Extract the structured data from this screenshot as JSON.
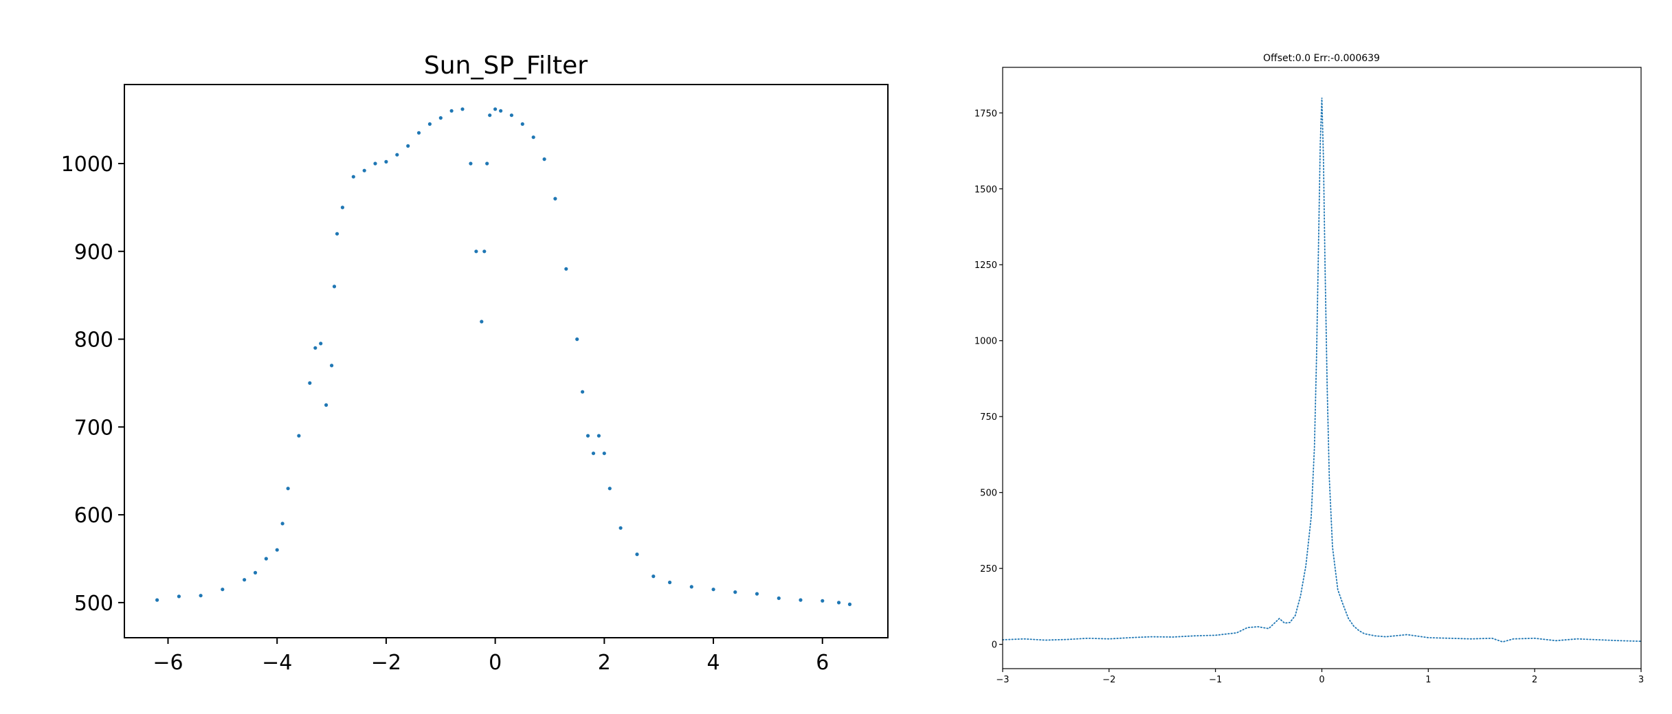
{
  "figure": {
    "background": "#ffffff",
    "series_color": "#1f77b4",
    "axis_color": "#000000"
  },
  "chart_data": [
    {
      "type": "scatter",
      "title": "Sun_SP_Filter",
      "xlabel": "",
      "ylabel": "",
      "xlim": [
        -6.8,
        7.2
      ],
      "ylim": [
        460,
        1090
      ],
      "xticks": [
        -6,
        -4,
        -2,
        0,
        2,
        4,
        6
      ],
      "yticks": [
        500,
        600,
        700,
        800,
        900,
        1000
      ],
      "xtick_labels": [
        "−6",
        "−4",
        "−2",
        "0",
        "2",
        "4",
        "6"
      ],
      "ytick_labels": [
        "500",
        "600",
        "700",
        "800",
        "900",
        "1000"
      ],
      "grid": false,
      "marker": "dot",
      "x": [
        -6.2,
        -5.8,
        -5.4,
        -5.0,
        -4.6,
        -4.4,
        -4.2,
        -4.0,
        -3.9,
        -3.8,
        -3.6,
        -3.4,
        -3.3,
        -3.2,
        -3.1,
        -3.0,
        -2.95,
        -2.9,
        -2.8,
        -2.6,
        -2.4,
        -2.2,
        -2.0,
        -1.8,
        -1.6,
        -1.4,
        -1.2,
        -1.0,
        -0.8,
        -0.6,
        -0.45,
        -0.35,
        -0.25,
        -0.2,
        -0.15,
        -0.1,
        0.0,
        0.1,
        0.3,
        0.5,
        0.7,
        0.9,
        1.1,
        1.3,
        1.5,
        1.6,
        1.7,
        1.8,
        1.9,
        2.0,
        2.1,
        2.3,
        2.6,
        2.9,
        3.2,
        3.6,
        4.0,
        4.4,
        4.8,
        5.2,
        5.6,
        6.0,
        6.3,
        6.5
      ],
      "y": [
        503,
        507,
        508,
        515,
        526,
        534,
        550,
        560,
        590,
        630,
        690,
        750,
        790,
        795,
        725,
        770,
        860,
        920,
        950,
        985,
        992,
        1000,
        1002,
        1010,
        1020,
        1035,
        1045,
        1052,
        1060,
        1062,
        1000,
        900,
        820,
        900,
        1000,
        1055,
        1062,
        1060,
        1055,
        1045,
        1030,
        1005,
        960,
        880,
        800,
        740,
        690,
        670,
        690,
        670,
        630,
        585,
        555,
        530,
        523,
        518,
        515,
        512,
        510,
        505,
        503,
        502,
        500,
        498
      ]
    },
    {
      "type": "line",
      "title": "Offset:0.0    Err:-0.000639",
      "xlabel": "",
      "ylabel": "",
      "xlim": [
        -3,
        3
      ],
      "ylim": [
        -80,
        1900
      ],
      "xticks": [
        -3,
        -2,
        -1,
        0,
        1,
        2,
        3
      ],
      "yticks": [
        0,
        250,
        500,
        750,
        1000,
        1250,
        1500,
        1750
      ],
      "xtick_labels": [
        "−3",
        "−2",
        "−1",
        "0",
        "1",
        "2",
        "3"
      ],
      "ytick_labels": [
        "0",
        "250",
        "500",
        "750",
        "1000",
        "1250",
        "1500",
        "1750"
      ],
      "grid": false,
      "line_style": "dotted",
      "x": [
        -3.0,
        -2.8,
        -2.6,
        -2.4,
        -2.2,
        -2.0,
        -1.8,
        -1.6,
        -1.4,
        -1.2,
        -1.0,
        -0.8,
        -0.7,
        -0.6,
        -0.5,
        -0.4,
        -0.35,
        -0.3,
        -0.25,
        -0.2,
        -0.15,
        -0.1,
        -0.07,
        -0.05,
        -0.03,
        -0.015,
        0.0,
        0.015,
        0.03,
        0.05,
        0.07,
        0.1,
        0.15,
        0.2,
        0.25,
        0.3,
        0.35,
        0.4,
        0.5,
        0.6,
        0.8,
        1.0,
        1.2,
        1.4,
        1.6,
        1.7,
        1.8,
        2.0,
        2.2,
        2.4,
        2.6,
        2.8,
        3.0
      ],
      "y": [
        15,
        18,
        14,
        16,
        20,
        18,
        22,
        25,
        24,
        28,
        30,
        38,
        55,
        58,
        52,
        85,
        70,
        72,
        95,
        160,
        260,
        420,
        650,
        950,
        1350,
        1650,
        1800,
        1600,
        1250,
        850,
        550,
        320,
        180,
        130,
        85,
        60,
        45,
        35,
        28,
        25,
        32,
        22,
        20,
        18,
        20,
        8,
        18,
        20,
        12,
        18,
        15,
        12,
        10
      ]
    }
  ]
}
